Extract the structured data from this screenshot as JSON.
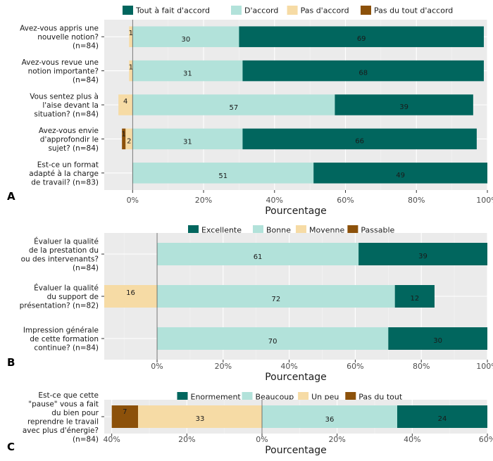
{
  "chart_data": [
    {
      "panel": "A",
      "type": "bar",
      "orientation": "horizontal-diverging-stacked",
      "xlabel": "Pourcentage",
      "xlim": [
        -0.08,
        1.0
      ],
      "ticks": [
        0,
        0.2,
        0.4,
        0.6,
        0.8,
        1.0
      ],
      "tick_labels": [
        "0%",
        "20%",
        "40%",
        "60%",
        "80%",
        "100%"
      ],
      "legend": [
        "Tout à fait d'accord",
        "D'accord",
        "Pas d'accord",
        "Pas du tout d'accord"
      ],
      "colors": [
        "#01665e",
        "#b2e2da",
        "#f6dba5",
        "#8c510a"
      ],
      "categories": [
        [
          "Avez-vous appris une",
          "nouvelle notion?",
          "(n=84)"
        ],
        [
          "Avez-vous revue une",
          "notion importante?",
          "(n=84)"
        ],
        [
          "Vous sentez plus à",
          "l'aise devant la",
          "situation? (n=84)"
        ],
        [
          "Avez-vous envie",
          "d'approfondir le",
          "sujet? (n=84)"
        ],
        [
          "Est-ce un format",
          "adapté à la charge",
          "de travail? (n=83)"
        ]
      ],
      "series": [
        {
          "name": "Tout à fait d'accord",
          "values": [
            69,
            68,
            39,
            66,
            49
          ]
        },
        {
          "name": "D'accord",
          "values": [
            30,
            31,
            57,
            31,
            51
          ]
        },
        {
          "name": "Pas d'accord",
          "values": [
            1,
            1,
            4,
            2,
            0
          ]
        },
        {
          "name": "Pas du tout d'accord",
          "values": [
            0,
            0,
            0,
            1,
            0
          ]
        }
      ]
    },
    {
      "panel": "B",
      "type": "bar",
      "orientation": "horizontal-diverging-stacked",
      "xlabel": "Pourcentage",
      "xlim": [
        -0.16,
        1.0
      ],
      "ticks": [
        0,
        0.2,
        0.4,
        0.6,
        0.8,
        1.0
      ],
      "tick_labels": [
        "0%",
        "20%",
        "40%",
        "60%",
        "80%",
        "100%"
      ],
      "legend": [
        "Excellente",
        "Bonne",
        "Moyenne",
        "Passable"
      ],
      "colors": [
        "#01665e",
        "#b2e2da",
        "#f6dba5",
        "#8c510a"
      ],
      "categories": [
        [
          "Évaluer la qualité",
          "de la prestation du",
          "ou des intervenants?",
          "(n=84)"
        ],
        [
          "Évaluer la qualité",
          "du support de",
          "présentation? (n=82)"
        ],
        [
          "Impression générale",
          "de cette formation",
          "continue? (n=84)"
        ]
      ],
      "series": [
        {
          "name": "Excellente",
          "values": [
            39,
            12,
            30
          ]
        },
        {
          "name": "Bonne",
          "values": [
            61,
            72,
            70
          ]
        },
        {
          "name": "Moyenne",
          "values": [
            0,
            16,
            0
          ]
        },
        {
          "name": "Passable",
          "values": [
            0,
            0,
            0
          ]
        }
      ]
    },
    {
      "panel": "C",
      "type": "bar",
      "orientation": "horizontal-diverging-stacked",
      "xlabel": "Pourcentage",
      "xlim": [
        -0.42,
        0.6
      ],
      "ticks": [
        -0.4,
        -0.2,
        0,
        0.2,
        0.4,
        0.6
      ],
      "tick_labels": [
        "40%",
        "20%",
        "0%",
        "20%",
        "40%",
        "60%"
      ],
      "legend": [
        "Enormement",
        "Beaucoup",
        "Un peu",
        "Pas du tout"
      ],
      "colors": [
        "#01665e",
        "#b2e2da",
        "#f6dba5",
        "#8c510a"
      ],
      "categories": [
        [
          "Est-ce que cette",
          "\"pause\" vous a fait",
          "du bien pour",
          "reprendre le travail",
          "avec plus d'énergie?",
          "(n=84)"
        ]
      ],
      "series": [
        {
          "name": "Enormement",
          "values": [
            24
          ]
        },
        {
          "name": "Beaucoup",
          "values": [
            36
          ]
        },
        {
          "name": "Un peu",
          "values": [
            33
          ]
        },
        {
          "name": "Pas du tout",
          "values": [
            7
          ]
        }
      ]
    }
  ]
}
